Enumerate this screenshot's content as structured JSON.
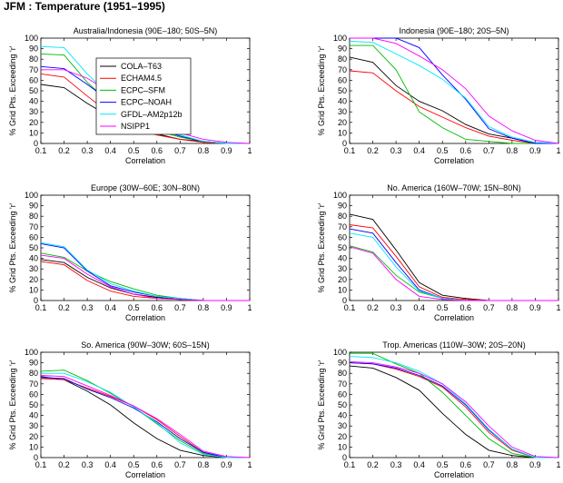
{
  "figure_title": "JFM : Temperature (1951–1995)",
  "legend": [
    {
      "name": "COLA–T63",
      "color": "#000000"
    },
    {
      "name": "ECHAM4.5",
      "color": "#ff0000"
    },
    {
      "name": "ECPC–SFM",
      "color": "#00bb00"
    },
    {
      "name": "ECPC–NOAH",
      "color": "#0000ff"
    },
    {
      "name": "GFDL–AM2p12b",
      "color": "#00e5ff"
    },
    {
      "name": "NSIPP1",
      "color": "#ff00ff"
    }
  ],
  "chart_data": [
    {
      "type": "line",
      "title": "Australia/Indonesia (90E–180; 50S–5N)",
      "xlabel": "Correlation",
      "ylabel": "% Grid Pts. Exceeding 'r'",
      "x": [
        0.1,
        0.2,
        0.3,
        0.4,
        0.5,
        0.6,
        0.7,
        0.8,
        0.9,
        1.0
      ],
      "xlim": [
        0.1,
        1.0
      ],
      "ylim": [
        0,
        100
      ],
      "xticks": [
        "0.1",
        "0.2",
        "0.3",
        "0.4",
        "0.5",
        "0.6",
        "0.7",
        "0.8",
        "0.9",
        "1"
      ],
      "yticks": [
        "0",
        "10",
        "20",
        "30",
        "40",
        "50",
        "60",
        "70",
        "80",
        "90",
        "100"
      ],
      "has_legend": true,
      "series": [
        {
          "name": "COLA–T63",
          "values": [
            56,
            53,
            38,
            25,
            15,
            9,
            4,
            2,
            0,
            0
          ]
        },
        {
          "name": "ECHAM4.5",
          "values": [
            66,
            63,
            45,
            28,
            14,
            8,
            4,
            1,
            0,
            0
          ]
        },
        {
          "name": "ECPC–SFM",
          "values": [
            85,
            84,
            58,
            38,
            22,
            12,
            6,
            2,
            0,
            0
          ]
        },
        {
          "name": "ECPC–NOAH",
          "values": [
            73,
            71,
            56,
            40,
            24,
            14,
            7,
            2,
            0,
            0
          ]
        },
        {
          "name": "GFDL–AM2p12b",
          "values": [
            92,
            91,
            66,
            45,
            28,
            15,
            8,
            2,
            0,
            0
          ]
        },
        {
          "name": "NSIPP1",
          "values": [
            70,
            70,
            62,
            48,
            32,
            20,
            10,
            4,
            1,
            0
          ]
        }
      ]
    },
    {
      "type": "line",
      "title": "Indonesia (90E–180; 20S–5N)",
      "xlabel": "Correlation",
      "ylabel": "% Grid Pts. Exceeding 'r'",
      "x": [
        0.1,
        0.2,
        0.3,
        0.4,
        0.5,
        0.6,
        0.7,
        0.8,
        0.9,
        1.0
      ],
      "xlim": [
        0.1,
        1.0
      ],
      "ylim": [
        0,
        100
      ],
      "xticks": [
        "0.1",
        "0.2",
        "0.3",
        "0.4",
        "0.5",
        "0.6",
        "0.7",
        "0.8",
        "0.9",
        "1"
      ],
      "yticks": [
        "0",
        "10",
        "20",
        "30",
        "40",
        "50",
        "60",
        "70",
        "80",
        "90",
        "100"
      ],
      "has_legend": false,
      "series": [
        {
          "name": "COLA–T63",
          "values": [
            82,
            77,
            55,
            40,
            31,
            18,
            9,
            5,
            0,
            0
          ]
        },
        {
          "name": "ECHAM4.5",
          "values": [
            69,
            67,
            50,
            35,
            25,
            15,
            7,
            3,
            0,
            0
          ]
        },
        {
          "name": "ECPC–SFM",
          "values": [
            93,
            93,
            70,
            30,
            15,
            4,
            2,
            0,
            0,
            0
          ]
        },
        {
          "name": "ECPC–NOAH",
          "values": [
            100,
            100,
            100,
            91,
            65,
            42,
            14,
            5,
            0,
            0
          ]
        },
        {
          "name": "GFDL–AM2p12b",
          "values": [
            97,
            96,
            85,
            74,
            61,
            43,
            16,
            6,
            1,
            0
          ]
        },
        {
          "name": "NSIPP1",
          "values": [
            100,
            100,
            95,
            83,
            70,
            52,
            26,
            12,
            3,
            0
          ]
        }
      ]
    },
    {
      "type": "line",
      "title": "Europe (30W–60E; 30N–80N)",
      "xlabel": "Correlation",
      "ylabel": "% Grid Pts. Exceeding 'r'",
      "x": [
        0.1,
        0.2,
        0.3,
        0.4,
        0.5,
        0.6,
        0.7,
        0.8,
        0.9,
        1.0
      ],
      "xlim": [
        0.1,
        1.0
      ],
      "ylim": [
        0,
        100
      ],
      "xticks": [
        "0.1",
        "0.2",
        "0.3",
        "0.4",
        "0.5",
        "0.6",
        "0.7",
        "0.8",
        "0.9",
        "1"
      ],
      "yticks": [
        "0",
        "10",
        "20",
        "30",
        "40",
        "50",
        "60",
        "70",
        "80",
        "90",
        "100"
      ],
      "has_legend": false,
      "series": [
        {
          "name": "COLA–T63",
          "values": [
            39,
            36,
            22,
            12,
            6,
            3,
            1,
            0,
            0,
            0
          ]
        },
        {
          "name": "ECHAM4.5",
          "values": [
            37,
            34,
            19,
            9,
            4,
            2,
            1,
            0,
            0,
            0
          ]
        },
        {
          "name": "ECPC–SFM",
          "values": [
            45,
            41,
            28,
            18,
            11,
            5,
            2,
            0,
            0,
            0
          ]
        },
        {
          "name": "ECPC–NOAH",
          "values": [
            54,
            50,
            28,
            14,
            8,
            4,
            2,
            0,
            0,
            0
          ]
        },
        {
          "name": "GFDL–AM2p12b",
          "values": [
            55,
            51,
            29,
            16,
            9,
            4,
            2,
            0,
            0,
            0
          ]
        },
        {
          "name": "NSIPP1",
          "values": [
            43,
            40,
            25,
            13,
            6,
            2,
            1,
            0,
            0,
            0
          ]
        }
      ]
    },
    {
      "type": "line",
      "title": "No. America (160W–70W; 15N–80N)",
      "xlabel": "Correlation",
      "ylabel": "% Grid Pts. Exceeding 'r'",
      "x": [
        0.1,
        0.2,
        0.3,
        0.4,
        0.5,
        0.6,
        0.7,
        0.8,
        0.9,
        1.0
      ],
      "xlim": [
        0.1,
        1.0
      ],
      "ylim": [
        0,
        100
      ],
      "xticks": [
        "0.1",
        "0.2",
        "0.3",
        "0.4",
        "0.5",
        "0.6",
        "0.7",
        "0.8",
        "0.9",
        "1"
      ],
      "yticks": [
        "0",
        "10",
        "20",
        "30",
        "40",
        "50",
        "60",
        "70",
        "80",
        "90",
        "100"
      ],
      "has_legend": false,
      "series": [
        {
          "name": "COLA–T63",
          "values": [
            82,
            77,
            48,
            17,
            5,
            2,
            0,
            0,
            0,
            0
          ]
        },
        {
          "name": "ECHAM4.5",
          "values": [
            72,
            69,
            42,
            13,
            3,
            1,
            0,
            0,
            0,
            0
          ]
        },
        {
          "name": "ECPC–SFM",
          "values": [
            52,
            46,
            24,
            8,
            2,
            0,
            0,
            0,
            0,
            0
          ]
        },
        {
          "name": "ECPC–NOAH",
          "values": [
            68,
            64,
            36,
            10,
            2,
            0,
            0,
            0,
            0,
            0
          ]
        },
        {
          "name": "GFDL–AM2p12b",
          "values": [
            64,
            60,
            32,
            9,
            2,
            0,
            0,
            0,
            0,
            0
          ]
        },
        {
          "name": "NSIPP1",
          "values": [
            51,
            45,
            20,
            4,
            1,
            0,
            0,
            0,
            0,
            0
          ]
        }
      ]
    },
    {
      "type": "line",
      "title": "So. America (90W–30W; 60S–15N)",
      "xlabel": "Correlation",
      "ylabel": "% Grid Pts. Exceeding 'r'",
      "x": [
        0.1,
        0.2,
        0.3,
        0.4,
        0.5,
        0.6,
        0.7,
        0.8,
        0.9,
        1.0
      ],
      "xlim": [
        0.1,
        1.0
      ],
      "ylim": [
        0,
        100
      ],
      "xticks": [
        "0.1",
        "0.2",
        "0.3",
        "0.4",
        "0.5",
        "0.6",
        "0.7",
        "0.8",
        "0.9",
        "1"
      ],
      "yticks": [
        "0",
        "10",
        "20",
        "30",
        "40",
        "50",
        "60",
        "70",
        "80",
        "90",
        "100"
      ],
      "has_legend": false,
      "series": [
        {
          "name": "COLA–T63",
          "values": [
            77,
            74,
            63,
            50,
            33,
            18,
            7,
            2,
            0,
            0
          ]
        },
        {
          "name": "ECHAM4.5",
          "values": [
            75,
            74,
            66,
            58,
            49,
            36,
            20,
            5,
            0,
            0
          ]
        },
        {
          "name": "ECPC–SFM",
          "values": [
            82,
            83,
            73,
            61,
            48,
            32,
            16,
            4,
            0,
            0
          ]
        },
        {
          "name": "ECPC–NOAH",
          "values": [
            76,
            75,
            65,
            57,
            47,
            34,
            18,
            5,
            0,
            0
          ]
        },
        {
          "name": "GFDL–AM2p12b",
          "values": [
            80,
            80,
            72,
            62,
            48,
            33,
            14,
            3,
            0,
            0
          ]
        },
        {
          "name": "NSIPP1",
          "values": [
            78,
            77,
            68,
            59,
            49,
            37,
            22,
            6,
            1,
            0
          ]
        }
      ]
    },
    {
      "type": "line",
      "title": "Trop. Americas (110W–30W; 20S–20N)",
      "xlabel": "Correlation",
      "ylabel": "% Grid Pts. Exceeding 'r'",
      "x": [
        0.1,
        0.2,
        0.3,
        0.4,
        0.5,
        0.6,
        0.7,
        0.8,
        0.9,
        1.0
      ],
      "xlim": [
        0.1,
        1.0
      ],
      "ylim": [
        0,
        100
      ],
      "xticks": [
        "0.1",
        "0.2",
        "0.3",
        "0.4",
        "0.5",
        "0.6",
        "0.7",
        "0.8",
        "0.9",
        "1"
      ],
      "yticks": [
        "0",
        "10",
        "20",
        "30",
        "40",
        "50",
        "60",
        "70",
        "80",
        "90",
        "100"
      ],
      "has_legend": false,
      "series": [
        {
          "name": "COLA–T63",
          "values": [
            87,
            85,
            76,
            64,
            42,
            22,
            7,
            2,
            0,
            0
          ]
        },
        {
          "name": "ECHAM4.5",
          "values": [
            90,
            89,
            84,
            77,
            67,
            48,
            24,
            7,
            0,
            0
          ]
        },
        {
          "name": "ECPC–SFM",
          "values": [
            99,
            99,
            89,
            80,
            62,
            40,
            18,
            4,
            0,
            0
          ]
        },
        {
          "name": "ECPC–NOAH",
          "values": [
            90,
            89,
            85,
            78,
            68,
            50,
            26,
            8,
            0,
            0
          ]
        },
        {
          "name": "GFDL–AM2p12b",
          "values": [
            96,
            95,
            90,
            82,
            70,
            51,
            27,
            8,
            0,
            0
          ]
        },
        {
          "name": "NSIPP1",
          "values": [
            91,
            90,
            86,
            80,
            70,
            53,
            30,
            10,
            1,
            0
          ]
        }
      ]
    }
  ]
}
